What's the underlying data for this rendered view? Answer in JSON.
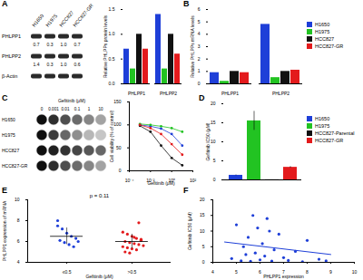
{
  "panel_labels": [
    "A",
    "B",
    "C",
    "D",
    "E",
    "F"
  ],
  "blot": {
    "lanes": [
      "H1650",
      "H1975",
      "HCC827",
      "HCC827-GR"
    ],
    "rows": [
      {
        "label": "PHLPP1",
        "quant": [
          "0.7",
          "0.3",
          "1.0",
          "0.7"
        ]
      },
      {
        "label": "PHLPP2",
        "quant": [
          "1.4",
          "0.3",
          "1.0",
          "0.6"
        ]
      },
      {
        "label": "β-Actin"
      }
    ]
  },
  "colony": {
    "label": "Gefitinib (μM)",
    "concentrations": [
      "0",
      "0.001",
      "0.01",
      "0.1",
      "1",
      "10"
    ],
    "rows": [
      "H1650",
      "H1975",
      "HCC827",
      "HCC827-GR"
    ]
  },
  "chart_data": [
    {
      "type": "bar",
      "y_label": "Relative PHLPPs protein levels",
      "categories": [
        "PHLPP1",
        "PHLPP2"
      ],
      "series": [
        {
          "name": "H1650",
          "color": "#1e3fd8",
          "values": [
            0.7,
            1.4
          ]
        },
        {
          "name": "H1975",
          "color": "#22c322",
          "values": [
            0.3,
            0.3
          ]
        },
        {
          "name": "HCC827",
          "color": "#111111",
          "values": [
            1.0,
            1.0
          ]
        },
        {
          "name": "HCC827-GR",
          "color": "#e31a1c",
          "values": [
            0.7,
            0.6
          ]
        }
      ],
      "ylim": [
        0,
        1.5
      ],
      "yticks": [
        {
          "value": 0,
          "label": "0.0"
        },
        {
          "value": 0.5,
          "label": "0.5"
        },
        {
          "value": 1,
          "label": "1.0"
        },
        {
          "value": 1.5,
          "label": "1.5"
        }
      ]
    },
    {
      "type": "bar",
      "y_label": "Relative PHLPPs mRNA levels",
      "categories": [
        "PHLPP1",
        "PHLPP2"
      ],
      "series": [
        {
          "name": "H1650",
          "color": "#1e3fd8",
          "values": [
            0.9,
            4.8
          ]
        },
        {
          "name": "H1975",
          "color": "#22c322",
          "values": [
            0.2,
            0.5
          ]
        },
        {
          "name": "HCC827",
          "color": "#111111",
          "values": [
            1.0,
            1.0
          ]
        },
        {
          "name": "HCC827-GR",
          "color": "#e31a1c",
          "values": [
            0.9,
            1.1
          ]
        }
      ],
      "ylim": [
        0,
        6
      ],
      "yticks": [
        0,
        1,
        2,
        3,
        4,
        5,
        6
      ],
      "legend": "right"
    },
    {
      "type": "line",
      "x_label": "Gefitinib (μM)",
      "y_label": "Cell viability (% of control)",
      "log": "x",
      "x": [
        0.001,
        0.01,
        0.1,
        1,
        10
      ],
      "series": [
        {
          "name": "H1650",
          "color": "#1e3fd8",
          "values": [
            100,
            97,
            92,
            80,
            55
          ]
        },
        {
          "name": "H1975",
          "color": "#22c322",
          "values": [
            102,
            100,
            97,
            93,
            85
          ]
        },
        {
          "name": "HCC827",
          "color": "#111111",
          "values": [
            98,
            85,
            55,
            28,
            12
          ]
        },
        {
          "name": "HCC827-GR",
          "color": "#e31a1c",
          "values": [
            100,
            93,
            80,
            58,
            35
          ]
        }
      ],
      "xlim": [
        0.0001,
        100
      ],
      "xticks": [
        {
          "value": 0.0001,
          "label": "10⁻⁴"
        },
        {
          "value": 0.01,
          "label": "10⁻²"
        },
        {
          "value": 1,
          "label": "10⁰"
        },
        {
          "value": 100,
          "label": "10²"
        }
      ],
      "ylim": [
        0,
        150
      ],
      "yticks": [
        0,
        50,
        100,
        150
      ],
      "marker": "circle"
    },
    {
      "type": "bar",
      "y_label": "Gefitinib IC50 (μM)",
      "categories": [
        "H1650",
        "H1975",
        "HCC827-Parental",
        "HCC827-GR"
      ],
      "values": [
        1.2,
        15.5,
        0.03,
        3.3
      ],
      "errors": [
        0.1,
        2.5,
        0.005,
        0.2
      ],
      "colors": [
        "#1e3fd8",
        "#22c322",
        "#111111",
        "#e31a1c"
      ],
      "ylim": [
        0,
        20
      ],
      "yticks": [
        0,
        5,
        10,
        15,
        20
      ],
      "legend": "right",
      "tick_labels": "y"
    },
    {
      "type": "scatter",
      "x_label": "Gefitinib (μM)",
      "y_label": "PHLPP1 expression of mRNA",
      "categories": [
        "≤0.5",
        ">0.5"
      ],
      "groups": [
        [
          7.5,
          7.2,
          6.8,
          6.5,
          6.3,
          6.1,
          5.9,
          5.7,
          5.5,
          6.0,
          8.0
        ],
        [
          6.9,
          6.7,
          6.5,
          6.3,
          6.2,
          6.0,
          5.9,
          5.8,
          5.7,
          5.6,
          5.5,
          5.4,
          5.3,
          5.2,
          6.1,
          5.0,
          4.9,
          6.4,
          7.8
        ]
      ],
      "means": [
        6.5,
        6.0
      ],
      "sds": [
        0.8,
        0.7
      ],
      "colors": [
        "#1e3fd8",
        "#e31a1c"
      ],
      "annotation": "p = 0.11",
      "ylim": [
        4,
        10
      ],
      "yticks": [
        4,
        6,
        8,
        10
      ],
      "marker": "circle"
    },
    {
      "type": "scatter",
      "x_label": "PHLPP1 expression",
      "y_label": "Gefitinib IC50 (μM)",
      "x": [
        4.8,
        5.0,
        5.2,
        5.3,
        5.5,
        5.6,
        5.8,
        5.9,
        6.0,
        6.1,
        6.2,
        6.3,
        6.5,
        6.6,
        6.8,
        7.0,
        7.2,
        7.5,
        7.8,
        8.0,
        8.5,
        8.8,
        5.4,
        5.7,
        6.4
      ],
      "values": [
        1.2,
        12,
        0.5,
        5,
        8,
        0.3,
        3,
        11,
        0.8,
        6,
        2,
        14,
        0.4,
        4,
        9,
        1.5,
        0.6,
        3.5,
        0.2,
        7,
        1,
        0.5,
        2.5,
        15,
        10
      ],
      "fit": {
        "x": [
          4.5,
          9
        ],
        "y": [
          6.5,
          2.5
        ]
      },
      "xlim": [
        4,
        10
      ],
      "xticks": [
        4,
        5,
        6,
        7,
        8,
        9,
        10
      ],
      "ylim": [
        0,
        20
      ],
      "yticks": [
        0,
        5,
        10,
        15,
        20
      ],
      "color": "#1e3fd8",
      "marker": "circle"
    }
  ]
}
